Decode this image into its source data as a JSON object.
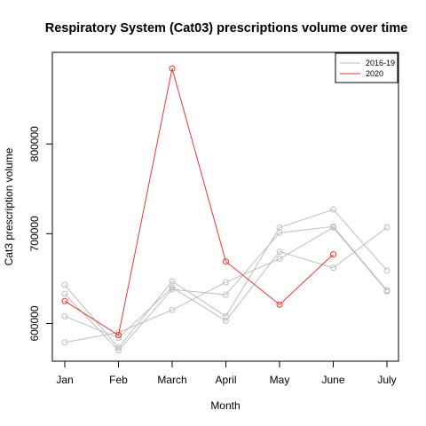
{
  "chart_data": {
    "type": "line",
    "title": "Respiratory System (Cat03) prescriptions volume over time",
    "xlabel": "Month",
    "ylabel": "Cat3 prescription volume",
    "categories": [
      "Jan",
      "Feb",
      "March",
      "April",
      "May",
      "June",
      "July"
    ],
    "yticks": [
      600000,
      700000,
      800000
    ],
    "ylim": [
      558000,
      902000
    ],
    "grid": false,
    "legend_position": "top-right",
    "legend": [
      {
        "label": "2016-19",
        "color": "#bebebe"
      },
      {
        "label": "2020",
        "color": "#e8372c"
      }
    ],
    "series": [
      {
        "group": "2016-19",
        "color": "#bebebe",
        "values": [
          643000,
          573000,
          647000,
          608000,
          707000,
          727000,
          659000
        ]
      },
      {
        "group": "2016-19",
        "color": "#bebebe",
        "values": [
          633000,
          570000,
          638000,
          632000,
          701000,
          708000,
          637000
        ]
      },
      {
        "group": "2016-19",
        "color": "#bebebe",
        "values": [
          608000,
          584000,
          640000,
          603000,
          680000,
          662000,
          707000
        ]
      },
      {
        "group": "2016-19",
        "color": "#bebebe",
        "values": [
          579000,
          590000,
          615000,
          646000,
          672000,
          707000,
          636000
        ]
      },
      {
        "group": "2020",
        "color": "#e8372c",
        "values": [
          625000,
          587000,
          884000,
          669000,
          621000,
          677000,
          null
        ]
      }
    ]
  }
}
